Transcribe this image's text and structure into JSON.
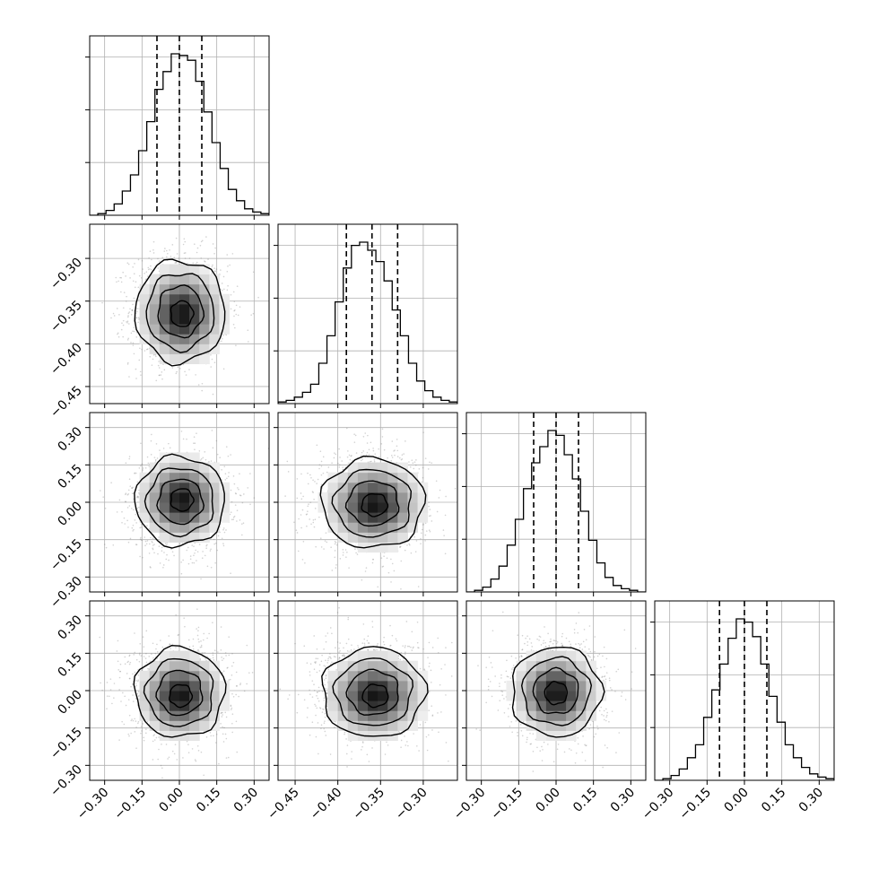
{
  "chart_data": {
    "type": "corner",
    "parameters": [
      "",
      "",
      "",
      ""
    ],
    "x_ticks": [
      [
        "−0.30",
        "−0.15",
        "0.00",
        "0.15",
        "0.30"
      ],
      [
        "−0.45",
        "−0.40",
        "−0.35",
        "−0.30"
      ],
      [
        "−0.30",
        "−0.15",
        "0.00",
        "0.15",
        "0.30"
      ],
      [
        "−0.30",
        "−0.15",
        "0.00",
        "0.15",
        "0.30"
      ]
    ],
    "x_tick_values": [
      [
        -0.3,
        -0.15,
        0.0,
        0.15,
        0.3
      ],
      [
        -0.45,
        -0.4,
        -0.35,
        -0.3
      ],
      [
        -0.3,
        -0.15,
        0.0,
        0.15,
        0.3
      ],
      [
        -0.3,
        -0.15,
        0.0,
        0.15,
        0.3
      ]
    ],
    "y_ticks": [
      [],
      [
        "−0.30",
        "−0.35",
        "−0.40",
        "−0.45"
      ],
      [
        "0.30",
        "0.15",
        "0.00",
        "−0.15",
        "−0.30"
      ],
      [
        "0.30",
        "0.15",
        "0.00",
        "−0.15",
        "−0.30"
      ]
    ],
    "y_tick_values": [
      [],
      [
        -0.3,
        -0.35,
        -0.4,
        -0.45
      ],
      [
        0.3,
        0.15,
        0.0,
        -0.15,
        -0.3
      ],
      [
        0.3,
        0.15,
        0.0,
        -0.15,
        -0.3
      ]
    ],
    "ranges": [
      [
        -0.36,
        0.36
      ],
      [
        -0.47,
        -0.26
      ],
      [
        -0.36,
        0.36
      ],
      [
        -0.36,
        0.36
      ]
    ],
    "quantiles": [
      [
        -0.09,
        0.0,
        0.09
      ],
      [
        -0.39,
        -0.36,
        -0.33
      ],
      [
        -0.09,
        0.0,
        0.09
      ],
      [
        -0.1,
        0.0,
        0.09
      ]
    ],
    "histograms": [
      {
        "edges_range": [
          -0.36,
          0.36
        ],
        "counts": [
          0.0,
          0.01,
          0.03,
          0.07,
          0.15,
          0.25,
          0.4,
          0.58,
          0.78,
          0.89,
          1.0,
          0.99,
          0.96,
          0.83,
          0.64,
          0.45,
          0.29,
          0.16,
          0.09,
          0.04,
          0.02,
          0.01
        ]
      },
      {
        "edges_range": [
          -0.47,
          -0.26
        ],
        "counts": [
          0.01,
          0.02,
          0.04,
          0.07,
          0.12,
          0.25,
          0.42,
          0.63,
          0.84,
          0.98,
          1.0,
          0.95,
          0.88,
          0.76,
          0.58,
          0.42,
          0.25,
          0.14,
          0.08,
          0.04,
          0.02,
          0.01
        ]
      },
      {
        "edges_range": [
          -0.36,
          0.36
        ],
        "counts": [
          0.0,
          0.01,
          0.03,
          0.08,
          0.16,
          0.29,
          0.45,
          0.64,
          0.8,
          0.9,
          1.0,
          0.97,
          0.85,
          0.7,
          0.5,
          0.32,
          0.18,
          0.09,
          0.04,
          0.02,
          0.01,
          0.0
        ]
      },
      {
        "edges_range": [
          -0.36,
          0.36
        ],
        "counts": [
          0.0,
          0.01,
          0.03,
          0.07,
          0.14,
          0.22,
          0.39,
          0.56,
          0.72,
          0.88,
          1.0,
          0.98,
          0.89,
          0.72,
          0.52,
          0.36,
          0.22,
          0.14,
          0.08,
          0.04,
          0.02,
          0.01
        ]
      }
    ],
    "densities": [
      {
        "row": 1,
        "col": 0,
        "center": [
          0.0,
          -0.36
        ],
        "sigma": [
          0.09,
          0.03
        ],
        "peak_offset": [
          0.01,
          -0.005
        ]
      },
      {
        "row": 2,
        "col": 0,
        "center": [
          0.0,
          0.0
        ],
        "sigma": [
          0.09,
          0.09
        ],
        "peak_offset": [
          0.01,
          0.01
        ]
      },
      {
        "row": 2,
        "col": 1,
        "center": [
          -0.36,
          0.0
        ],
        "sigma": [
          0.03,
          0.09
        ],
        "peak_offset": [
          0.003,
          -0.01
        ]
      },
      {
        "row": 3,
        "col": 0,
        "center": [
          0.0,
          0.0
        ],
        "sigma": [
          0.09,
          0.09
        ],
        "peak_offset": [
          0.005,
          -0.02
        ]
      },
      {
        "row": 3,
        "col": 1,
        "center": [
          -0.36,
          0.0
        ],
        "sigma": [
          0.03,
          0.09
        ],
        "peak_offset": [
          0.004,
          -0.02
        ]
      },
      {
        "row": 3,
        "col": 2,
        "center": [
          0.0,
          0.0
        ],
        "sigma": [
          0.09,
          0.09
        ],
        "peak_offset": [
          0.0,
          -0.01
        ]
      }
    ],
    "grid": true,
    "colors": {
      "line": "#000000",
      "grid": "#b0b0b0",
      "points": "#7f7f7f"
    }
  }
}
